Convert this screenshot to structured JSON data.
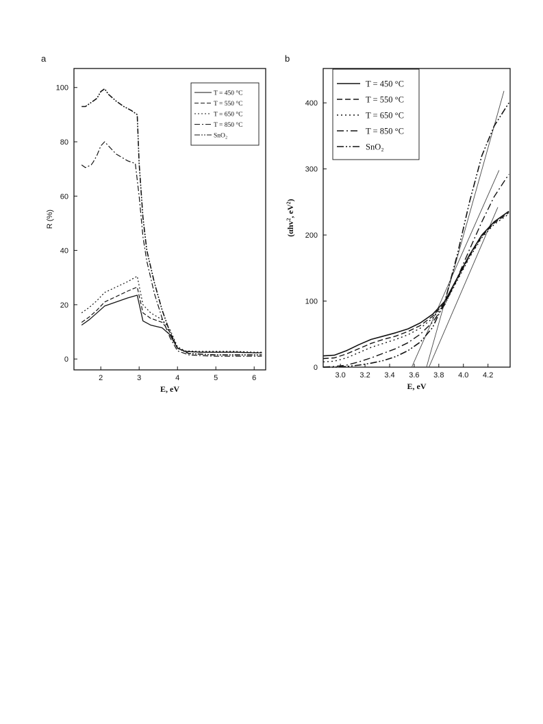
{
  "chart_data": [
    {
      "type": "line",
      "panel": "a",
      "xlabel": "E, eV",
      "ylabel": "R (%)",
      "xlim": [
        1.3,
        6.3
      ],
      "ylim": [
        -4,
        107
      ],
      "xticks": [
        2,
        3,
        4,
        5,
        6
      ],
      "yticks": [
        0,
        20,
        40,
        60,
        80,
        100
      ],
      "legend_position": "top-right",
      "series": [
        {
          "name": "T = 450 °C",
          "dash": "solid",
          "width": 1.3,
          "x": [
            1.5,
            1.7,
            1.9,
            2.1,
            2.4,
            2.7,
            2.95,
            3.1,
            3.3,
            3.6,
            3.8,
            4.0,
            4.2,
            4.6,
            5.0,
            5.5,
            6.0,
            6.2
          ],
          "y": [
            12.5,
            14.5,
            17,
            19.5,
            21,
            22.5,
            23.5,
            14,
            12.5,
            11.5,
            9,
            4,
            2.8,
            2.5,
            2.5,
            2.5,
            2.3,
            2.3
          ]
        },
        {
          "name": "T = 550 °C",
          "dash": "6,3",
          "width": 1.2,
          "x": [
            1.5,
            1.7,
            1.9,
            2.1,
            2.4,
            2.7,
            2.95,
            3.1,
            3.3,
            3.6,
            3.8,
            4.0,
            4.2,
            4.6,
            5.0,
            5.5,
            6.0,
            6.2
          ],
          "y": [
            13.5,
            15.5,
            18,
            21,
            23,
            25,
            26.5,
            17,
            15,
            13.5,
            10,
            4,
            2.8,
            2.5,
            2.5,
            2.5,
            2.3,
            2.3
          ]
        },
        {
          "name": "T = 650 °C",
          "dash": "2,3",
          "width": 1.2,
          "x": [
            1.5,
            1.7,
            1.9,
            2.1,
            2.4,
            2.7,
            2.95,
            3.1,
            3.3,
            3.6,
            3.8,
            4.0,
            4.2,
            4.6,
            5.0,
            5.5,
            6.0,
            6.2
          ],
          "y": [
            17,
            19,
            21.5,
            24.5,
            26.5,
            28.5,
            30.5,
            20,
            17,
            14.5,
            11,
            4.5,
            3,
            2.8,
            2.8,
            2.8,
            2.5,
            2.5
          ]
        },
        {
          "name": "T = 850 °C",
          "dash": "8,3,2,3",
          "width": 1.2,
          "x": [
            1.5,
            1.6,
            1.75,
            1.8,
            1.9,
            2.0,
            2.1,
            2.2,
            2.4,
            2.7,
            2.9,
            3.0,
            3.1,
            3.2,
            3.4,
            3.6,
            3.8,
            4.0,
            4.3,
            5.0,
            5.5,
            6.0,
            6.2
          ],
          "y": [
            71.5,
            70.5,
            71.5,
            72.5,
            75,
            78.5,
            80,
            78.5,
            75.5,
            73,
            72,
            60,
            45,
            36,
            24,
            15,
            8,
            3,
            1.5,
            1,
            1,
            1,
            1
          ]
        },
        {
          "name": "SnO₂",
          "dash": "8,2,2,2,2,2",
          "width": 1.6,
          "x": [
            1.5,
            1.6,
            1.8,
            1.9,
            2.0,
            2.1,
            2.2,
            2.4,
            2.6,
            2.8,
            2.95,
            3.0,
            3.1,
            3.2,
            3.4,
            3.6,
            3.8,
            4.0,
            4.3,
            5.0,
            5.5,
            6.0,
            6.2
          ],
          "y": [
            93,
            93,
            95,
            96,
            98.5,
            99.5,
            97.5,
            95,
            93,
            91.5,
            90,
            72,
            52,
            40,
            28,
            18,
            10,
            4,
            2,
            1.5,
            1.5,
            1.5,
            1.5
          ]
        }
      ]
    },
    {
      "type": "line",
      "panel": "b",
      "xlabel": "E, eV",
      "ylabel_parts": [
        "(αhv",
        "2",
        ", eV",
        "2",
        ")"
      ],
      "xlim": [
        2.86,
        4.38
      ],
      "ylim": [
        0,
        452
      ],
      "xticks": [
        3.0,
        3.2,
        3.4,
        3.6,
        3.8,
        4.0,
        4.2
      ],
      "yticks": [
        0,
        100,
        200,
        300,
        400
      ],
      "legend_position": "top-left",
      "series": [
        {
          "name": "T = 450 °C",
          "dash": "solid",
          "width": 1.6,
          "x": [
            2.86,
            2.95,
            3.05,
            3.15,
            3.25,
            3.35,
            3.45,
            3.55,
            3.65,
            3.75,
            3.85,
            3.95,
            4.05,
            4.15,
            4.25,
            4.37
          ],
          "y": [
            17,
            18,
            25,
            34,
            42,
            47,
            52,
            58,
            67,
            80,
            100,
            135,
            170,
            200,
            220,
            236
          ]
        },
        {
          "name": "T = 550 °C",
          "dash": "8,4",
          "width": 1.4,
          "x": [
            2.86,
            2.95,
            3.05,
            3.15,
            3.25,
            3.35,
            3.45,
            3.55,
            3.65,
            3.75,
            3.85,
            3.95,
            4.05,
            4.15,
            4.25,
            4.37
          ],
          "y": [
            13,
            14,
            20,
            28,
            36,
            42,
            47,
            54,
            63,
            77,
            98,
            133,
            168,
            198,
            218,
            234
          ]
        },
        {
          "name": "T = 650 °C",
          "dash": "2,4",
          "width": 1.4,
          "x": [
            2.86,
            2.95,
            3.05,
            3.15,
            3.25,
            3.35,
            3.45,
            3.55,
            3.65,
            3.75,
            3.85,
            3.95,
            4.05,
            4.15,
            4.25,
            4.37
          ],
          "y": [
            8,
            9,
            14,
            22,
            30,
            36,
            42,
            49,
            59,
            74,
            96,
            131,
            166,
            196,
            216,
            232
          ]
        },
        {
          "name": "T = 850 °C",
          "dash": "10,4,2,4",
          "width": 1.4,
          "x": [
            2.86,
            2.95,
            3.05,
            3.15,
            3.25,
            3.35,
            3.45,
            3.55,
            3.65,
            3.75,
            3.85,
            3.95,
            4.05,
            4.15,
            4.25,
            4.37
          ],
          "y": [
            0,
            1,
            3,
            8,
            14,
            21,
            28,
            37,
            50,
            68,
            95,
            135,
            178,
            220,
            258,
            292
          ]
        },
        {
          "name": "SnO₂",
          "subscript_last": "2",
          "dash": "10,3,2,3,2,3",
          "width": 1.6,
          "x": [
            2.86,
            2.95,
            3.05,
            3.15,
            3.25,
            3.35,
            3.45,
            3.55,
            3.65,
            3.75,
            3.85,
            3.95,
            4.05,
            4.15,
            4.25,
            4.37
          ],
          "y": [
            0,
            0,
            1,
            3,
            6,
            10,
            16,
            25,
            38,
            60,
            100,
            170,
            250,
            320,
            365,
            400
          ]
        }
      ],
      "tangent_lines": [
        {
          "x": [
            3.7,
            4.33
          ],
          "y": [
            0,
            418
          ]
        },
        {
          "x": [
            3.58,
            4.29
          ],
          "y": [
            0,
            298
          ]
        },
        {
          "x": [
            3.72,
            4.28
          ],
          "y": [
            0,
            242
          ]
        }
      ]
    }
  ]
}
